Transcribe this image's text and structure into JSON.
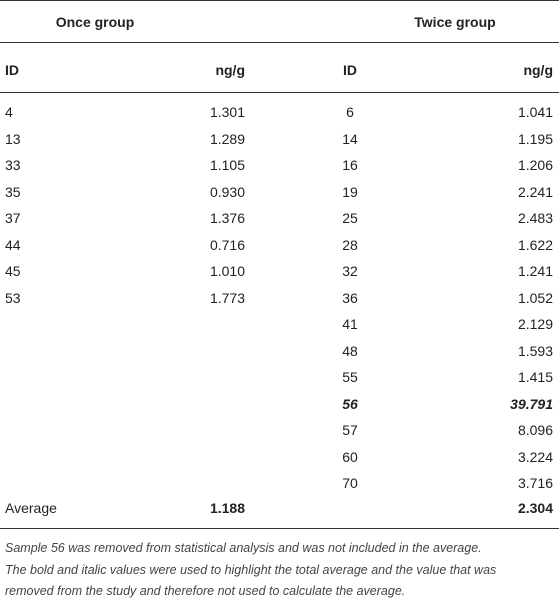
{
  "table": {
    "group_headers": [
      "Once group",
      "Twice group"
    ],
    "column_headers": [
      "ID",
      "ng/g",
      "ID",
      "ng/g"
    ],
    "rows": [
      [
        "4",
        "1.301",
        "6",
        "1.041"
      ],
      [
        "13",
        "1.289",
        "14",
        "1.195"
      ],
      [
        "33",
        "1.105",
        "16",
        "1.206"
      ],
      [
        "35",
        "0.930",
        "19",
        "2.241"
      ],
      [
        "37",
        "1.376",
        "25",
        "2.483"
      ],
      [
        "44",
        "0.716",
        "28",
        "1.622"
      ],
      [
        "45",
        "1.010",
        "32",
        "1.241"
      ],
      [
        "53",
        "1.773",
        "36",
        "1.052"
      ],
      [
        null,
        null,
        "41",
        "2.129"
      ],
      [
        null,
        null,
        "48",
        "1.593"
      ],
      [
        null,
        null,
        "55",
        "1.415"
      ],
      [
        null,
        null,
        "56",
        "39.791"
      ],
      [
        null,
        null,
        "57",
        "8.096"
      ],
      [
        null,
        null,
        "60",
        "3.224"
      ],
      [
        null,
        null,
        "70",
        "3.716"
      ]
    ],
    "highlighted_row": 11,
    "average_row": [
      "Average",
      "1.188",
      "2.304"
    ],
    "footnote": [
      "Sample 56 was removed from statistical analysis and was not included in the average.",
      "The bold and italic values were used to highlight the total average and the value that was",
      "removed from the study and therefore not used to calculate the average."
    ]
  }
}
